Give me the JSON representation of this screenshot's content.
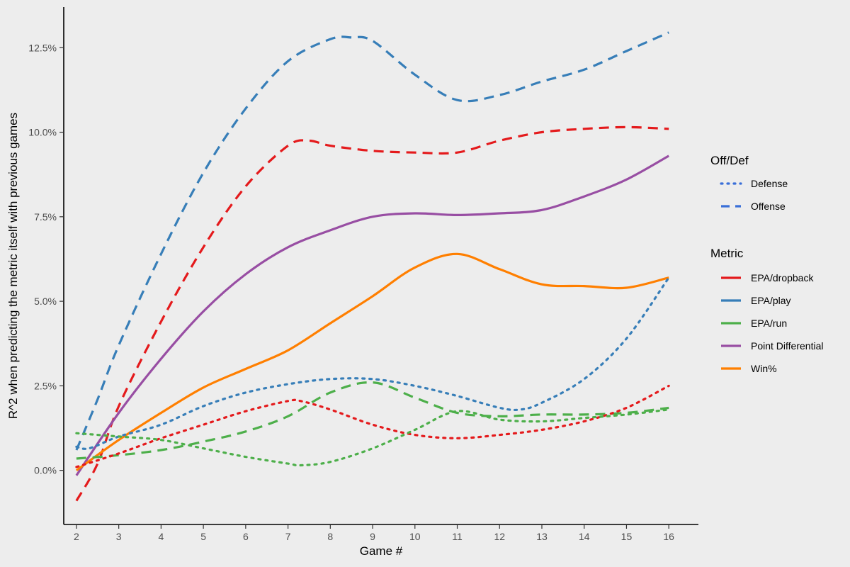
{
  "chart_data": {
    "type": "line",
    "xlabel": "Game #",
    "ylabel": "R^2 when predicting the metric itself with previous games",
    "x_ticks": [
      2,
      3,
      4,
      5,
      6,
      7,
      8,
      9,
      10,
      11,
      12,
      13,
      14,
      15,
      16
    ],
    "y_ticks": [
      {
        "value": 0.0,
        "label": "0.0%"
      },
      {
        "value": 2.5,
        "label": "2.5%"
      },
      {
        "value": 5.0,
        "label": "5.0%"
      },
      {
        "value": 7.5,
        "label": "7.5%"
      },
      {
        "value": 10.0,
        "label": "10.0%"
      },
      {
        "value": 12.5,
        "label": "12.5%"
      }
    ],
    "xlim": [
      1.7,
      16.7
    ],
    "ylim": [
      -1.6,
      13.7
    ],
    "grid": false,
    "legend_placement": "right",
    "legends": {
      "offdef": {
        "title": "Off/Def",
        "items": [
          {
            "label": "Defense",
            "style": "dotted"
          },
          {
            "label": "Offense",
            "style": "dashed"
          }
        ]
      },
      "metric": {
        "title": "Metric",
        "items": [
          {
            "label": "EPA/dropback",
            "color": "#e41a1c"
          },
          {
            "label": "EPA/play",
            "color": "#377eb8"
          },
          {
            "label": "EPA/run",
            "color": "#4daf4a"
          },
          {
            "label": "Point Differential",
            "color": "#984ea3"
          },
          {
            "label": "Win%",
            "color": "#ff7f00"
          }
        ]
      }
    },
    "legend_colors": {
      "defense": "#3a6fd8",
      "offense": "#3a6fd8"
    },
    "series": [
      {
        "metric": "EPA/play",
        "side": "Offense",
        "color": "#377eb8",
        "style": "dashed",
        "x": [
          2,
          2.5,
          3,
          4,
          5,
          6,
          7,
          8,
          8.5,
          9,
          10,
          11,
          12,
          13,
          14,
          15,
          16
        ],
        "y": [
          0.6,
          2.1,
          3.7,
          6.4,
          8.8,
          10.7,
          12.1,
          12.75,
          12.8,
          12.7,
          11.7,
          10.95,
          11.1,
          11.5,
          11.85,
          12.4,
          12.95
        ]
      },
      {
        "metric": "EPA/dropback",
        "side": "Offense",
        "color": "#e41a1c",
        "style": "dashed",
        "x": [
          2,
          2.5,
          3,
          4,
          5,
          6,
          7,
          7.5,
          8,
          9,
          10,
          11,
          12,
          13,
          14,
          15,
          16
        ],
        "y": [
          -0.9,
          0.2,
          1.9,
          4.4,
          6.6,
          8.4,
          9.6,
          9.75,
          9.6,
          9.45,
          9.4,
          9.4,
          9.75,
          10.0,
          10.1,
          10.15,
          10.1
        ]
      },
      {
        "metric": "Point Differential",
        "side": "Offense",
        "color": "#984ea3",
        "style": "solid",
        "x": [
          2,
          3,
          4,
          5,
          6,
          7,
          8,
          9,
          10,
          11,
          12,
          13,
          14,
          15,
          16
        ],
        "y": [
          -0.15,
          1.7,
          3.3,
          4.7,
          5.8,
          6.6,
          7.1,
          7.5,
          7.6,
          7.55,
          7.6,
          7.7,
          8.1,
          8.6,
          9.3
        ]
      },
      {
        "metric": "Win%",
        "side": "Offense",
        "color": "#ff7f00",
        "style": "solid",
        "x": [
          2,
          3,
          4,
          5,
          6,
          7,
          8,
          9,
          10,
          11,
          12,
          13,
          14,
          15,
          16
        ],
        "y": [
          0.0,
          0.9,
          1.7,
          2.45,
          3.0,
          3.55,
          4.35,
          5.15,
          6.0,
          6.4,
          5.95,
          5.5,
          5.45,
          5.4,
          5.7
        ]
      },
      {
        "metric": "EPA/run",
        "side": "Offense",
        "color": "#4daf4a",
        "style": "dashed",
        "x": [
          2,
          3,
          4,
          5,
          6,
          7,
          8,
          9,
          10,
          11,
          12,
          13,
          14,
          15,
          16
        ],
        "y": [
          0.35,
          0.45,
          0.6,
          0.85,
          1.15,
          1.6,
          2.3,
          2.6,
          2.15,
          1.7,
          1.6,
          1.65,
          1.65,
          1.7,
          1.85
        ]
      },
      {
        "metric": "EPA/play",
        "side": "Defense",
        "color": "#377eb8",
        "style": "dotted",
        "x": [
          2,
          2.3,
          3,
          4,
          5,
          6,
          7,
          8,
          9,
          10,
          11,
          12,
          12.5,
          13,
          14,
          15,
          16
        ],
        "y": [
          0.7,
          0.65,
          1.0,
          1.35,
          1.9,
          2.3,
          2.55,
          2.7,
          2.7,
          2.5,
          2.2,
          1.85,
          1.8,
          2.0,
          2.7,
          3.9,
          5.7
        ]
      },
      {
        "metric": "EPA/dropback",
        "side": "Defense",
        "color": "#e41a1c",
        "style": "dotted",
        "x": [
          2,
          3,
          4,
          5,
          6,
          7,
          7.3,
          8,
          9,
          10,
          11,
          12,
          13,
          14,
          15,
          16
        ],
        "y": [
          0.1,
          0.5,
          0.95,
          1.35,
          1.75,
          2.05,
          2.05,
          1.8,
          1.35,
          1.05,
          0.95,
          1.05,
          1.2,
          1.45,
          1.85,
          2.5
        ]
      },
      {
        "metric": "EPA/run",
        "side": "Defense",
        "color": "#4daf4a",
        "style": "dotted",
        "x": [
          2,
          3,
          4,
          5,
          6,
          7,
          7.3,
          8,
          9,
          10,
          11,
          12,
          13,
          14,
          15,
          16
        ],
        "y": [
          1.1,
          1.0,
          0.9,
          0.65,
          0.4,
          0.2,
          0.15,
          0.25,
          0.65,
          1.2,
          1.75,
          1.5,
          1.45,
          1.55,
          1.65,
          1.8
        ]
      }
    ]
  }
}
